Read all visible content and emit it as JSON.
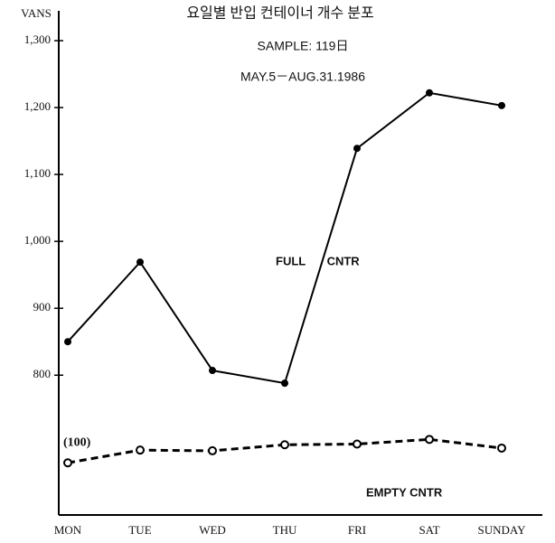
{
  "chart_data": {
    "type": "line",
    "title": "요일별 반입 컨테이너 개수 분포",
    "subtitle": "SAMPLE: 119日",
    "period": "MAY.5－AUG.31.1986",
    "y_label": "VANS",
    "categories": [
      "MON",
      "TUE",
      "WED",
      "THU",
      "FRI",
      "SAT",
      "SUNDAY"
    ],
    "series": [
      {
        "name": "FULL CNTR",
        "color": "#000000",
        "axis": "y",
        "style": "solid",
        "values": [
          850,
          969,
          807,
          788,
          1139,
          1222,
          1203
        ]
      },
      {
        "name": "EMPTY CNTR",
        "color": "#000000",
        "axis": "y2",
        "style": "dashed",
        "values": [
          100,
          119,
          118,
          127,
          128,
          135,
          122
        ]
      }
    ],
    "annotations": [
      "(100)"
    ],
    "ylim": [
      591,
      1300
    ],
    "yticks": [
      800,
      900,
      {
        "value": 1000,
        "label": "1,000"
      },
      {
        "value": 1100,
        "label": "1,100"
      },
      {
        "value": 1200,
        "label": "1,200"
      },
      {
        "value": 1300,
        "label": "1,300"
      }
    ],
    "y2lim": [
      22,
      731
    ],
    "grid": false
  }
}
